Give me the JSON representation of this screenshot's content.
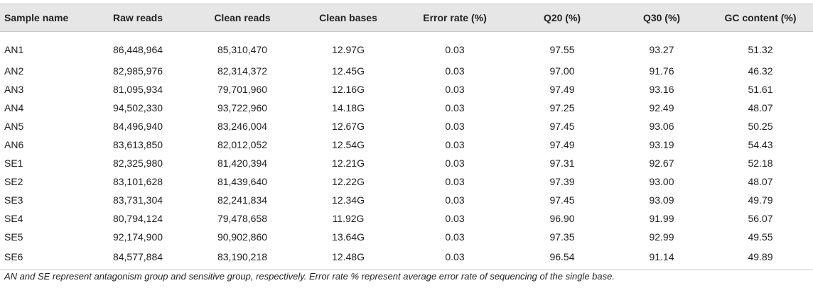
{
  "table": {
    "headers": [
      "Sample name",
      "Raw reads",
      "Clean reads",
      "Clean bases",
      "Error rate (%)",
      "Q20 (%)",
      "Q30 (%)",
      "GC content (%)"
    ],
    "rows": [
      [
        "AN1",
        "86,448,964",
        "85,310,470",
        "12.97G",
        "0.03",
        "97.55",
        "93.27",
        "51.32"
      ],
      [
        "AN2",
        "82,985,976",
        "82,314,372",
        "12.45G",
        "0.03",
        "97.00",
        "91.76",
        "46.32"
      ],
      [
        "AN3",
        "81,095,934",
        "79,701,960",
        "12.16G",
        "0.03",
        "97.49",
        "93.16",
        "51.61"
      ],
      [
        "AN4",
        "94,502,330",
        "93,722,960",
        "14.18G",
        "0.03",
        "97.25",
        "92.49",
        "48.07"
      ],
      [
        "AN5",
        "84,496,940",
        "83,246,004",
        "12.67G",
        "0.03",
        "97.45",
        "93.06",
        "50.25"
      ],
      [
        "AN6",
        "83,613,850",
        "82,012,052",
        "12.54G",
        "0.03",
        "97.49",
        "93.19",
        "54.43"
      ],
      [
        "SE1",
        "82,325,980",
        "81,420,394",
        "12.21G",
        "0.03",
        "97.31",
        "92.67",
        "52.18"
      ],
      [
        "SE2",
        "83,101,628",
        "81,439,640",
        "12.22G",
        "0.03",
        "97.39",
        "93.00",
        "48.07"
      ],
      [
        "SE3",
        "83,731,304",
        "82,241,834",
        "12.34G",
        "0.03",
        "97.45",
        "93.09",
        "49.79"
      ],
      [
        "SE4",
        "80,794,124",
        "79,478,658",
        "11.92G",
        "0.03",
        "96.90",
        "91.99",
        "56.07"
      ],
      [
        "SE5",
        "92,174,900",
        "90,902,860",
        "13.64G",
        "0.03",
        "97.35",
        "92.99",
        "49.55"
      ],
      [
        "SE6",
        "84,577,884",
        "83,190,218",
        "12.48G",
        "0.03",
        "96.54",
        "91.14",
        "49.89"
      ]
    ]
  },
  "footnote": "AN and SE represent antagonism group and sensitive group, respectively. Error rate % represent average error rate of sequencing of the single base.",
  "colors": {
    "header_background": "#e6e6e6",
    "rule": "#c8c8c8",
    "text": "#222222"
  }
}
